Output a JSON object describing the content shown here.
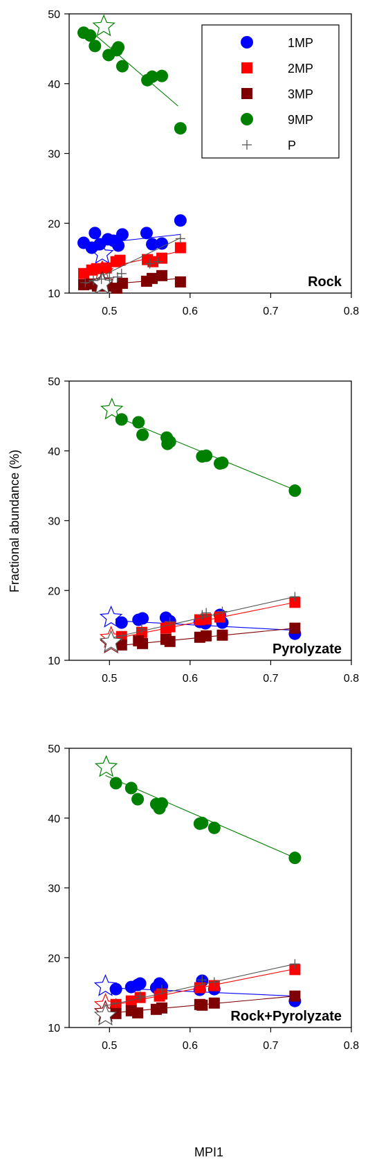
{
  "chart_data": [
    {
      "type": "scatter",
      "panel_label": "Rock",
      "xlim": [
        0.45,
        0.8
      ],
      "ylim": [
        10,
        50
      ],
      "xticks": [
        "0.5",
        "0.6",
        "0.7",
        "0.8"
      ],
      "yticks": [
        "10",
        "20",
        "30",
        "40",
        "50"
      ],
      "legend_placement": "top-right",
      "series": [
        {
          "name": "1MP",
          "color": "#0000ff",
          "marker": "circle",
          "x": [
            0.468,
            0.478,
            0.482,
            0.488,
            0.498,
            0.505,
            0.511,
            0.516,
            0.546,
            0.553,
            0.565,
            0.588
          ],
          "y": [
            17.2,
            16.5,
            18.6,
            17.0,
            17.7,
            17.5,
            16.8,
            18.4,
            18.6,
            17.0,
            17.1,
            20.4
          ],
          "fit": [
            [
              0.468,
              16.9
            ],
            [
              0.588,
              18.4
            ]
          ],
          "star": [
            0.491,
            15.6
          ]
        },
        {
          "name": "2MP",
          "color": "#ff0000",
          "marker": "square",
          "x": [
            0.468,
            0.478,
            0.484,
            0.496,
            0.508,
            0.513,
            0.547,
            0.554,
            0.565,
            0.588
          ],
          "y": [
            12.8,
            13.3,
            13.5,
            13.6,
            14.5,
            14.7,
            14.8,
            14.5,
            15.0,
            16.5
          ],
          "fit": [
            [
              0.468,
              12.9
            ],
            [
              0.588,
              16.0
            ]
          ],
          "star": [
            0.491,
            13.0
          ]
        },
        {
          "name": "3MP",
          "color": "#7f0000",
          "marker": "square",
          "x": [
            0.468,
            0.476,
            0.485,
            0.497,
            0.509,
            0.516,
            0.546,
            0.553,
            0.565,
            0.588
          ],
          "y": [
            11.2,
            11.3,
            11.0,
            11.0,
            10.7,
            11.4,
            11.7,
            12.1,
            12.5,
            11.6
          ],
          "fit": [
            [
              0.468,
              11.0
            ],
            [
              0.588,
              12.1
            ]
          ],
          "star": [
            0.491,
            11.5
          ]
        },
        {
          "name": "9MP",
          "color": "#008000",
          "marker": "circle",
          "x": [
            0.468,
            0.476,
            0.482,
            0.499,
            0.509,
            0.511,
            0.516,
            0.547,
            0.553,
            0.565,
            0.588
          ],
          "y": [
            47.3,
            46.9,
            45.4,
            44.1,
            44.8,
            45.2,
            42.5,
            40.5,
            41.0,
            41.1,
            33.6
          ],
          "fit": [
            [
              0.476,
              47.6
            ],
            [
              0.585,
              36.8
            ]
          ],
          "star": [
            0.493,
            48.2
          ]
        },
        {
          "name": "P",
          "color": "#555555",
          "marker": "plus",
          "x": [
            0.47,
            0.48,
            0.49,
            0.5,
            0.51,
            0.515,
            0.55,
            0.56,
            0.588
          ],
          "y": [
            11.5,
            11.8,
            12.0,
            12.2,
            12.3,
            12.8,
            14.2,
            14.5,
            17.8
          ],
          "fit": [
            [
              0.47,
              11.3
            ],
            [
              0.588,
              17.9
            ]
          ],
          "star": [
            0.491,
            11.3
          ]
        }
      ]
    },
    {
      "type": "scatter",
      "panel_label": "Pyrolyzate",
      "ylabel": "Fractional abundance (%)",
      "xlim": [
        0.45,
        0.8
      ],
      "ylim": [
        10,
        50
      ],
      "xticks": [
        "0.5",
        "0.6",
        "0.7",
        "0.8"
      ],
      "yticks": [
        "10",
        "20",
        "30",
        "40",
        "50"
      ],
      "series": [
        {
          "name": "1MP",
          "color": "#0000ff",
          "marker": "circle",
          "x": [
            0.515,
            0.536,
            0.541,
            0.57,
            0.575,
            0.612,
            0.615,
            0.619,
            0.637,
            0.64,
            0.73
          ],
          "y": [
            15.4,
            15.8,
            16.0,
            16.1,
            15.6,
            15.5,
            15.6,
            15.3,
            16.5,
            15.4,
            13.8
          ],
          "fit": [
            [
              0.502,
              15.7
            ],
            [
              0.73,
              14.3
            ]
          ],
          "star": [
            0.502,
            16.1
          ]
        },
        {
          "name": "2MP",
          "color": "#ff0000",
          "marker": "square",
          "x": [
            0.515,
            0.54,
            0.57,
            0.575,
            0.612,
            0.62,
            0.637,
            0.73
          ],
          "y": [
            13.4,
            14.0,
            14.6,
            14.8,
            15.8,
            15.9,
            16.2,
            18.3
          ],
          "fit": [
            [
              0.502,
              13.0
            ],
            [
              0.73,
              18.3
            ]
          ],
          "star": [
            0.502,
            13.2
          ]
        },
        {
          "name": "3MP",
          "color": "#7f0000",
          "marker": "square",
          "x": [
            0.515,
            0.536,
            0.541,
            0.57,
            0.575,
            0.612,
            0.62,
            0.64,
            0.73
          ],
          "y": [
            12.2,
            12.8,
            12.4,
            13.0,
            12.7,
            13.3,
            13.5,
            13.6,
            14.6
          ],
          "fit": [
            [
              0.502,
              12.0
            ],
            [
              0.73,
              14.6
            ]
          ],
          "star": [
            0.502,
            12.4
          ]
        },
        {
          "name": "9MP",
          "color": "#008000",
          "marker": "circle",
          "x": [
            0.515,
            0.536,
            0.541,
            0.571,
            0.572,
            0.575,
            0.615,
            0.62,
            0.637,
            0.64,
            0.73
          ],
          "y": [
            44.5,
            44.1,
            42.3,
            41.9,
            41.0,
            41.3,
            39.2,
            39.3,
            38.2,
            38.3,
            34.3
          ],
          "fit": [
            [
              0.502,
              45.2
            ],
            [
              0.73,
              34.4
            ]
          ],
          "star": [
            0.503,
            45.9
          ]
        },
        {
          "name": "P",
          "color": "#555555",
          "marker": "plus",
          "x": [
            0.515,
            0.54,
            0.575,
            0.615,
            0.62,
            0.64,
            0.73
          ],
          "y": [
            13.5,
            14.5,
            15.5,
            16.5,
            16.8,
            17.0,
            19.1
          ],
          "fit": [
            [
              0.502,
              13.2
            ],
            [
              0.73,
              19.1
            ]
          ],
          "star": [
            0.502,
            12.6
          ]
        }
      ]
    },
    {
      "type": "scatter",
      "panel_label": "Rock+Pyrolyzate",
      "xlabel": "MPI1",
      "xlim": [
        0.45,
        0.8
      ],
      "ylim": [
        10,
        50
      ],
      "xticks": [
        "0.5",
        "0.6",
        "0.7",
        "0.8"
      ],
      "yticks": [
        "10",
        "20",
        "30",
        "40",
        "50"
      ],
      "series": [
        {
          "name": "1MP",
          "color": "#0000ff",
          "marker": "circle",
          "x": [
            0.508,
            0.527,
            0.535,
            0.538,
            0.558,
            0.562,
            0.565,
            0.612,
            0.615,
            0.63,
            0.73
          ],
          "y": [
            15.5,
            15.8,
            16.1,
            16.3,
            15.7,
            16.3,
            15.9,
            15.4,
            16.7,
            15.5,
            13.8
          ],
          "fit": [
            [
              0.495,
              15.7
            ],
            [
              0.73,
              14.5
            ]
          ],
          "star": [
            0.495,
            15.9
          ]
        },
        {
          "name": "2MP",
          "color": "#ff0000",
          "marker": "square",
          "x": [
            0.508,
            0.527,
            0.538,
            0.562,
            0.565,
            0.612,
            0.63,
            0.73
          ],
          "y": [
            13.3,
            13.8,
            14.3,
            14.5,
            14.8,
            15.7,
            16.0,
            18.3
          ],
          "fit": [
            [
              0.495,
              13.0
            ],
            [
              0.73,
              18.4
            ]
          ],
          "star": [
            0.495,
            13.2
          ]
        },
        {
          "name": "3MP",
          "color": "#7f0000",
          "marker": "square",
          "x": [
            0.508,
            0.527,
            0.535,
            0.558,
            0.565,
            0.612,
            0.615,
            0.63,
            0.73
          ],
          "y": [
            12.0,
            12.4,
            12.1,
            12.6,
            12.8,
            13.3,
            13.2,
            13.5,
            14.5
          ],
          "fit": [
            [
              0.495,
              12.0
            ],
            [
              0.73,
              14.5
            ]
          ],
          "star": [
            0.495,
            12.2
          ]
        },
        {
          "name": "9MP",
          "color": "#008000",
          "marker": "circle",
          "x": [
            0.508,
            0.527,
            0.535,
            0.558,
            0.562,
            0.565,
            0.612,
            0.615,
            0.63,
            0.73
          ],
          "y": [
            45.0,
            44.3,
            42.7,
            42.0,
            41.4,
            42.1,
            39.2,
            39.3,
            38.6,
            34.3
          ],
          "fit": [
            [
              0.495,
              46.1
            ],
            [
              0.73,
              34.3
            ]
          ],
          "star": [
            0.496,
            47.3
          ]
        },
        {
          "name": "P",
          "color": "#555555",
          "marker": "plus",
          "x": [
            0.508,
            0.538,
            0.565,
            0.615,
            0.63,
            0.73
          ],
          "y": [
            13.5,
            14.5,
            15.4,
            16.8,
            16.5,
            19.1
          ],
          "fit": [
            [
              0.495,
              13.1
            ],
            [
              0.73,
              19.1
            ]
          ],
          "star": [
            0.495,
            11.7
          ]
        }
      ]
    }
  ]
}
